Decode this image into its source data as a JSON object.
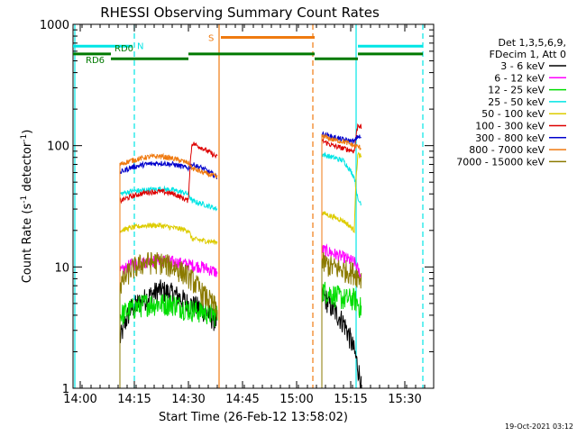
{
  "chart_data": {
    "type": "line",
    "title": "RHESSI Observing Summary Count Rates",
    "xlabel": "Start Time (26-Feb-12 13:58:02)",
    "ylabel_main": "Count Rate (s",
    "ylabel_sup1": "-1",
    "ylabel_mid": " detector",
    "ylabel_sup2": "-1",
    "ylabel_end": ")",
    "x_unit": "minutes",
    "xlim": [
      -2,
      98
    ],
    "ylim": [
      1,
      1000
    ],
    "yscale": "log",
    "x_ticks": [
      {
        "value": 0,
        "label": "14:00"
      },
      {
        "value": 15,
        "label": "14:15"
      },
      {
        "value": 30,
        "label": "14:30"
      },
      {
        "value": 45,
        "label": "14:45"
      },
      {
        "value": 60,
        "label": "15:00"
      },
      {
        "value": 75,
        "label": "15:15"
      },
      {
        "value": 90,
        "label": "15:30"
      }
    ],
    "y_ticks": [
      {
        "value": 1,
        "label": "1"
      },
      {
        "value": 10,
        "label": "10"
      },
      {
        "value": 100,
        "label": "100"
      },
      {
        "value": 1000,
        "label": "1000"
      }
    ],
    "legend": {
      "placement": "right",
      "header": [
        "Det 1,3,5,6,9,",
        "FDecim 1, Att 0"
      ]
    },
    "timestamp": "19-Oct-2021 03:12",
    "flags": [
      {
        "label": "N",
        "color": "#00e5e5",
        "y": 660,
        "segments": [
          [
            -2,
            14.5
          ],
          [
            77,
            95
          ]
        ]
      },
      {
        "label": "RD0",
        "color": "#007a00",
        "y": 570,
        "segments": [
          [
            -2,
            8.5
          ],
          [
            30,
            65
          ],
          [
            77,
            95
          ]
        ]
      },
      {
        "label": "RD6",
        "color": "#007a00",
        "y": 520,
        "segments": [
          [
            8.5,
            30
          ],
          [
            65,
            77
          ]
        ]
      },
      {
        "label": "S",
        "color": "#ef7a10",
        "y": 780,
        "segments": [
          [
            39,
            65
          ]
        ]
      }
    ],
    "vlines": [
      {
        "x": -1.5,
        "color": "#00e5e5",
        "style": "solid"
      },
      {
        "x": 15,
        "color": "#00e5e5",
        "style": "dashed"
      },
      {
        "x": 38.5,
        "color": "#ef7a10",
        "style": "solid"
      },
      {
        "x": 64.5,
        "color": "#ef7a10",
        "style": "dashed"
      },
      {
        "x": 76.5,
        "color": "#00e5e5",
        "style": "solid"
      },
      {
        "x": 95,
        "color": "#00e5e5",
        "style": "dashed"
      }
    ],
    "segments": [
      {
        "start": 11,
        "end": 38
      },
      {
        "start": 67,
        "end": 78
      }
    ],
    "series": [
      {
        "name": "3 - 6 keV",
        "color": "#000000",
        "seg1": [
          [
            11,
            2.5
          ],
          [
            14,
            4.5
          ],
          [
            18,
            5.5
          ],
          [
            22,
            6.5
          ],
          [
            26,
            6.0
          ],
          [
            30,
            5.0
          ],
          [
            34,
            4.5
          ],
          [
            38,
            3.5
          ]
        ],
        "seg2": [
          [
            67,
            6.0
          ],
          [
            70,
            4.5
          ],
          [
            73,
            3.5
          ],
          [
            76,
            2.0
          ],
          [
            78,
            1.0
          ]
        ]
      },
      {
        "name": "6 - 12 keV",
        "color": "#ff00ff",
        "seg1": [
          [
            11,
            9.0
          ],
          [
            14,
            10.5
          ],
          [
            18,
            11.0
          ],
          [
            22,
            11.5
          ],
          [
            26,
            11.0
          ],
          [
            30,
            10.5
          ],
          [
            34,
            10.0
          ],
          [
            38,
            9.0
          ]
        ],
        "seg2": [
          [
            67,
            14.0
          ],
          [
            70,
            13.0
          ],
          [
            73,
            12.0
          ],
          [
            76,
            11.0
          ],
          [
            78,
            8.0
          ]
        ]
      },
      {
        "name": "12 - 25 keV",
        "color": "#00dd00",
        "seg1": [
          [
            11,
            4.0
          ],
          [
            14,
            4.5
          ],
          [
            18,
            5.0
          ],
          [
            22,
            5.0
          ],
          [
            26,
            5.0
          ],
          [
            30,
            4.5
          ],
          [
            34,
            4.3
          ],
          [
            38,
            4.0
          ]
        ],
        "seg2": [
          [
            67,
            6.5
          ],
          [
            70,
            6.0
          ],
          [
            73,
            5.5
          ],
          [
            76,
            5.5
          ],
          [
            78,
            4.5
          ]
        ]
      },
      {
        "name": "25 - 50 keV",
        "color": "#00e5e5",
        "seg1": [
          [
            11,
            40.0
          ],
          [
            14,
            42.0
          ],
          [
            18,
            43.0
          ],
          [
            22,
            44.0
          ],
          [
            26,
            43.0
          ],
          [
            30,
            40.0
          ],
          [
            31,
            35.0
          ],
          [
            34,
            33.0
          ],
          [
            38,
            30.0
          ]
        ],
        "seg2": [
          [
            67,
            85.0
          ],
          [
            70,
            80.0
          ],
          [
            73,
            75.0
          ],
          [
            76,
            55.0
          ],
          [
            77,
            35.0
          ],
          [
            78,
            34.0
          ]
        ]
      },
      {
        "name": "50 - 100 keV",
        "color": "#ddcc00",
        "seg1": [
          [
            11,
            20.0
          ],
          [
            14,
            21.0
          ],
          [
            18,
            22.0
          ],
          [
            22,
            22.0
          ],
          [
            26,
            21.0
          ],
          [
            30,
            20.0
          ],
          [
            31,
            17.0
          ],
          [
            34,
            16.5
          ],
          [
            38,
            16.0
          ]
        ],
        "seg2": [
          [
            67,
            28.0
          ],
          [
            70,
            26.0
          ],
          [
            73,
            24.0
          ],
          [
            76,
            20.0
          ],
          [
            77,
            85.0
          ],
          [
            78,
            80.0
          ]
        ]
      },
      {
        "name": "100 - 300 keV",
        "color": "#dd0000",
        "seg1": [
          [
            11,
            35.0
          ],
          [
            14,
            38.0
          ],
          [
            18,
            41.0
          ],
          [
            22,
            42.0
          ],
          [
            26,
            40.0
          ],
          [
            30,
            35.0
          ],
          [
            31,
            105.0
          ],
          [
            34,
            95.0
          ],
          [
            38,
            80.0
          ]
        ],
        "seg2": [
          [
            67,
            110.0
          ],
          [
            70,
            100.0
          ],
          [
            73,
            95.0
          ],
          [
            76,
            90.0
          ],
          [
            77,
            150.0
          ],
          [
            78,
            140.0
          ]
        ]
      },
      {
        "name": "300 - 800 keV",
        "color": "#0000cc",
        "seg1": [
          [
            11,
            60.0
          ],
          [
            14,
            66.0
          ],
          [
            18,
            70.0
          ],
          [
            22,
            72.0
          ],
          [
            26,
            70.0
          ],
          [
            30,
            65.0
          ],
          [
            31,
            70.0
          ],
          [
            34,
            65.0
          ],
          [
            38,
            55.0
          ]
        ],
        "seg2": [
          [
            67,
            125.0
          ],
          [
            70,
            118.0
          ],
          [
            73,
            112.0
          ],
          [
            76,
            108.0
          ],
          [
            77,
            120.0
          ],
          [
            78,
            115.0
          ]
        ]
      },
      {
        "name": "800 - 7000 keV",
        "color": "#ef7a10",
        "seg1": [
          [
            11,
            70.0
          ],
          [
            14,
            75.0
          ],
          [
            18,
            80.0
          ],
          [
            22,
            82.0
          ],
          [
            26,
            78.0
          ],
          [
            30,
            72.0
          ],
          [
            31,
            65.0
          ],
          [
            34,
            60.0
          ],
          [
            38,
            55.0
          ]
        ],
        "seg2": [
          [
            67,
            120.0
          ],
          [
            70,
            112.0
          ],
          [
            73,
            108.0
          ],
          [
            76,
            100.0
          ],
          [
            77,
            98.0
          ],
          [
            78,
            95.0
          ]
        ]
      },
      {
        "name": "7000 - 15000 keV",
        "color": "#8b7a00",
        "seg1": [
          [
            11,
            7.0
          ],
          [
            14,
            9.5
          ],
          [
            18,
            11.0
          ],
          [
            22,
            11.0
          ],
          [
            26,
            10.0
          ],
          [
            30,
            8.5
          ],
          [
            34,
            6.0
          ],
          [
            38,
            4.5
          ]
        ],
        "seg2": [
          [
            67,
            11.0
          ],
          [
            70,
            10.0
          ],
          [
            73,
            9.5
          ],
          [
            76,
            9.0
          ],
          [
            78,
            8.0
          ]
        ]
      }
    ]
  }
}
